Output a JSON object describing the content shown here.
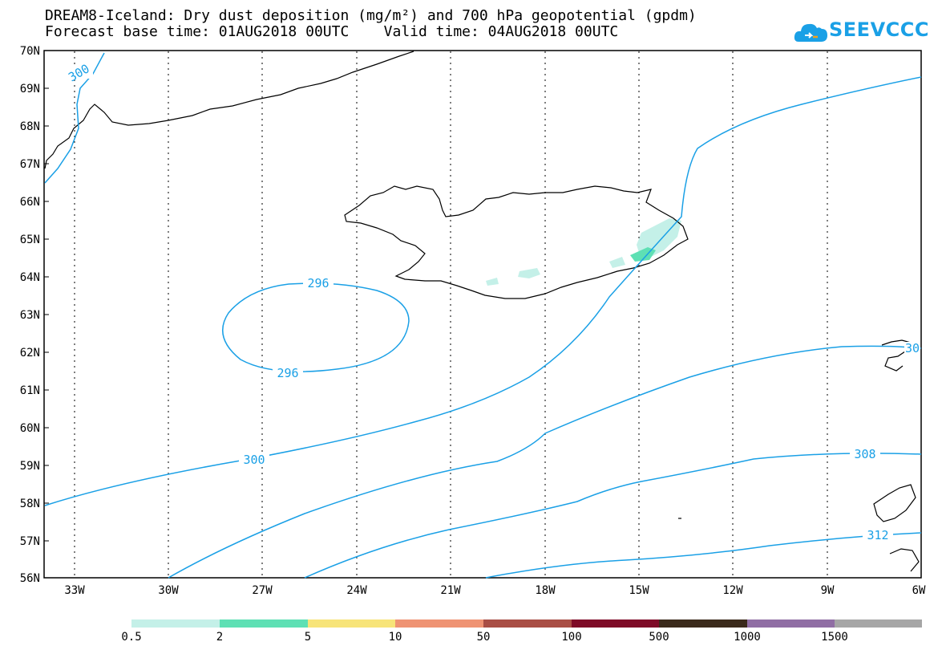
{
  "header": {
    "title_line1": "DREAM8-Iceland: Dry dust deposition (mg/m²) and 700 hPa geopotential (gpdm)",
    "title_line2": "Forecast base time: 01AUG2018 00UTC    Valid time: 04AUG2018 00UTC"
  },
  "logo": {
    "text": "SEEVCCC",
    "icon": "cloud-icon",
    "color": "#1aa0e6"
  },
  "map": {
    "lat_labels": [
      "70N",
      "69N",
      "68N",
      "67N",
      "66N",
      "65N",
      "64N",
      "63N",
      "62N",
      "61N",
      "60N",
      "59N",
      "58N",
      "57N",
      "56N"
    ],
    "lon_labels": [
      "33W",
      "30W",
      "27W",
      "24W",
      "21W",
      "18W",
      "15W",
      "12W",
      "9W",
      "6W"
    ],
    "contour_color": "#1aa0e6",
    "contour_labels": [
      "300",
      "296",
      "296",
      "300",
      "308",
      "312",
      "30"
    ]
  },
  "colorbar": {
    "labels": [
      "0.5",
      "2",
      "5",
      "10",
      "50",
      "100",
      "500",
      "1000",
      "1500"
    ],
    "colors": [
      "#c4f0e8",
      "#5ee0b4",
      "#f7e479",
      "#ef9373",
      "#a94e45",
      "#7e0b27",
      "#3b2a1b",
      "#906ea4",
      "#a6a6a6"
    ]
  }
}
